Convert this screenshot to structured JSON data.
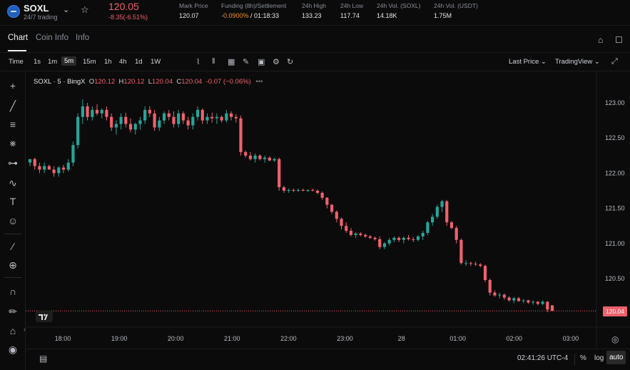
{
  "header": {
    "symbol": "SOXL",
    "subtitle": "24/7 trading",
    "last_price": "120.05",
    "change": "-8.35(-6.51%)",
    "stats": [
      {
        "label": "Mark Price",
        "value": "120.07"
      },
      {
        "label": "Funding (8h)/Settlement",
        "value_neg": "-0.0900%",
        "value_rest": " / 01:18:33"
      },
      {
        "label": "24h High",
        "value": "133.23"
      },
      {
        "label": "24h Low",
        "value": "117.74"
      },
      {
        "label": "24h Vol. (SOXL)",
        "value": "14.18K"
      },
      {
        "label": "24h Vol. (USDT)",
        "value": "1.75M"
      }
    ]
  },
  "tabs": [
    "Chart",
    "Coin Info",
    "Info"
  ],
  "toolbar": {
    "time_label": "Time",
    "intervals": [
      "1s",
      "1m",
      "5m",
      "15m",
      "1h",
      "4h",
      "1d",
      "1W"
    ],
    "selected_interval": "5m",
    "price_type": "Last Price",
    "view_mode": "TradingView"
  },
  "legend": {
    "title": "SOXL · 5 · BingX",
    "o_label": "O",
    "o": "120.12",
    "h_label": "H",
    "h": "120.12",
    "l_label": "L",
    "l": "120.04",
    "c_label": "C",
    "c": "120.04",
    "change": "-0.07 (−0.06%)"
  },
  "current_price_tag": "120.04",
  "bottom": {
    "clock": "02:41:26 UTC-4",
    "percent_label": "%",
    "log_label": "log",
    "auto_label": "auto"
  },
  "colors": {
    "up": "#26a69a",
    "down": "#f0616d",
    "background": "#0b0b0b",
    "accent_funding": "#f7931a"
  },
  "chart_data": {
    "type": "candlestick",
    "interval": "5m",
    "y_ticks": [
      "123.00",
      "122.50",
      "122.00",
      "121.50",
      "121.00",
      "120.50"
    ],
    "ylim": [
      119.85,
      123.2
    ],
    "x_ticks": [
      "18:00",
      "19:00",
      "20:00",
      "21:00",
      "22:00",
      "23:00",
      "28",
      "01:00",
      "02:00",
      "03:00"
    ],
    "candles_ohlc": [
      [
        122.15,
        122.2,
        122.1,
        122.2
      ],
      [
        122.2,
        122.22,
        122.05,
        122.1
      ],
      [
        122.1,
        122.15,
        122.0,
        122.05
      ],
      [
        122.05,
        122.15,
        122.0,
        122.1
      ],
      [
        122.1,
        122.12,
        122.05,
        122.05
      ],
      [
        122.05,
        122.1,
        121.95,
        122.0
      ],
      [
        122.0,
        122.1,
        121.95,
        122.08
      ],
      [
        122.08,
        122.12,
        122.0,
        122.05
      ],
      [
        122.05,
        122.2,
        122.02,
        122.15
      ],
      [
        122.15,
        122.45,
        122.1,
        122.4
      ],
      [
        122.4,
        122.85,
        122.35,
        122.8
      ],
      [
        122.8,
        123.05,
        122.7,
        122.95
      ],
      [
        122.95,
        123.0,
        122.75,
        122.8
      ],
      [
        122.8,
        122.95,
        122.75,
        122.9
      ],
      [
        122.9,
        122.98,
        122.82,
        122.85
      ],
      [
        122.85,
        122.92,
        122.78,
        122.9
      ],
      [
        122.9,
        122.95,
        122.75,
        122.8
      ],
      [
        122.8,
        122.85,
        122.6,
        122.65
      ],
      [
        122.65,
        122.75,
        122.55,
        122.7
      ],
      [
        122.7,
        122.85,
        122.62,
        122.8
      ],
      [
        122.8,
        122.86,
        122.65,
        122.7
      ],
      [
        122.7,
        122.78,
        122.58,
        122.62
      ],
      [
        122.62,
        122.72,
        122.55,
        122.7
      ],
      [
        122.7,
        122.8,
        122.62,
        122.75
      ],
      [
        122.75,
        122.95,
        122.7,
        122.9
      ],
      [
        122.9,
        122.95,
        122.8,
        122.85
      ],
      [
        122.85,
        122.9,
        122.6,
        122.65
      ],
      [
        122.65,
        122.8,
        122.6,
        122.75
      ],
      [
        122.75,
        122.88,
        122.7,
        122.85
      ],
      [
        122.85,
        122.9,
        122.75,
        122.8
      ],
      [
        122.8,
        122.88,
        122.65,
        122.7
      ],
      [
        122.7,
        122.9,
        122.65,
        122.85
      ],
      [
        122.85,
        122.88,
        122.7,
        122.75
      ],
      [
        122.75,
        122.8,
        122.62,
        122.68
      ],
      [
        122.68,
        122.85,
        122.62,
        122.8
      ],
      [
        122.8,
        122.95,
        122.75,
        122.9
      ],
      [
        122.9,
        122.92,
        122.7,
        122.75
      ],
      [
        122.75,
        122.85,
        122.7,
        122.8
      ],
      [
        122.8,
        122.86,
        122.72,
        122.78
      ],
      [
        122.78,
        122.85,
        122.7,
        122.8
      ],
      [
        122.8,
        122.82,
        122.72,
        122.75
      ],
      [
        122.75,
        122.9,
        122.72,
        122.85
      ],
      [
        122.85,
        122.88,
        122.75,
        122.8
      ],
      [
        122.8,
        122.84,
        122.72,
        122.78
      ],
      [
        122.78,
        122.82,
        122.25,
        122.3
      ],
      [
        122.3,
        122.32,
        122.22,
        122.25
      ],
      [
        122.25,
        122.3,
        122.18,
        122.2
      ],
      [
        122.2,
        122.28,
        122.15,
        122.25
      ],
      [
        122.25,
        122.27,
        122.18,
        122.2
      ],
      [
        122.2,
        122.25,
        122.15,
        122.22
      ],
      [
        122.22,
        122.24,
        122.17,
        122.18
      ],
      [
        122.18,
        122.22,
        122.16,
        122.2
      ],
      [
        122.2,
        122.22,
        121.75,
        121.8
      ],
      [
        121.8,
        121.82,
        121.72,
        121.75
      ],
      [
        121.75,
        121.78,
        121.72,
        121.76
      ],
      [
        121.76,
        121.78,
        121.73,
        121.75
      ],
      [
        121.75,
        121.78,
        121.73,
        121.76
      ],
      [
        121.76,
        121.78,
        121.74,
        121.75
      ],
      [
        121.75,
        121.77,
        121.73,
        121.76
      ],
      [
        121.76,
        121.78,
        121.74,
        121.75
      ],
      [
        121.75,
        121.77,
        121.7,
        121.72
      ],
      [
        121.72,
        121.74,
        121.62,
        121.65
      ],
      [
        121.65,
        121.66,
        121.5,
        121.55
      ],
      [
        121.55,
        121.56,
        121.42,
        121.45
      ],
      [
        121.45,
        121.47,
        121.3,
        121.35
      ],
      [
        121.35,
        121.37,
        121.2,
        121.25
      ],
      [
        121.25,
        121.3,
        121.15,
        121.18
      ],
      [
        121.18,
        121.22,
        121.1,
        121.12
      ],
      [
        121.12,
        121.16,
        121.08,
        121.14
      ],
      [
        121.14,
        121.16,
        121.1,
        121.12
      ],
      [
        121.12,
        121.14,
        121.08,
        121.1
      ],
      [
        121.1,
        121.12,
        121.06,
        121.08
      ],
      [
        121.08,
        121.1,
        121.04,
        121.06
      ],
      [
        121.06,
        121.1,
        120.92,
        120.95
      ],
      [
        120.95,
        121.02,
        120.92,
        121.0
      ],
      [
        121.0,
        121.08,
        120.97,
        121.05
      ],
      [
        121.05,
        121.1,
        121.02,
        121.08
      ],
      [
        121.08,
        121.1,
        121.02,
        121.05
      ],
      [
        121.05,
        121.1,
        121.0,
        121.08
      ],
      [
        121.08,
        121.12,
        121.04,
        121.06
      ],
      [
        121.06,
        121.09,
        121.02,
        121.05
      ],
      [
        121.05,
        121.12,
        121.03,
        121.1
      ],
      [
        121.1,
        121.18,
        121.05,
        121.15
      ],
      [
        121.15,
        121.32,
        121.12,
        121.3
      ],
      [
        121.3,
        121.42,
        121.25,
        121.38
      ],
      [
        121.38,
        121.55,
        121.35,
        121.52
      ],
      [
        121.52,
        121.62,
        121.45,
        121.6
      ],
      [
        121.6,
        121.62,
        121.25,
        121.3
      ],
      [
        121.3,
        121.32,
        121.2,
        121.22
      ],
      [
        121.22,
        121.25,
        121.0,
        121.05
      ],
      [
        121.05,
        121.07,
        120.7,
        120.72
      ],
      [
        120.72,
        120.76,
        120.68,
        120.72
      ],
      [
        120.72,
        120.74,
        120.68,
        120.71
      ],
      [
        120.71,
        120.74,
        120.68,
        120.7
      ],
      [
        120.7,
        120.72,
        120.66,
        120.68
      ],
      [
        120.68,
        120.7,
        120.45,
        120.48
      ],
      [
        120.48,
        120.5,
        120.26,
        120.3
      ],
      [
        120.3,
        120.33,
        120.24,
        120.26
      ],
      [
        120.26,
        120.3,
        120.22,
        120.27
      ],
      [
        120.27,
        120.29,
        120.2,
        120.23
      ],
      [
        120.23,
        120.25,
        120.17,
        120.19
      ],
      [
        120.19,
        120.24,
        120.15,
        120.22
      ],
      [
        120.22,
        120.24,
        120.17,
        120.18
      ],
      [
        120.18,
        120.21,
        120.15,
        120.19
      ],
      [
        120.19,
        120.2,
        120.14,
        120.16
      ],
      [
        120.16,
        120.19,
        120.13,
        120.17
      ],
      [
        120.17,
        120.18,
        120.12,
        120.14
      ],
      [
        120.14,
        120.19,
        120.12,
        120.17
      ],
      [
        120.17,
        120.18,
        120.02,
        120.06
      ],
      [
        120.12,
        120.12,
        120.04,
        120.04
      ]
    ]
  }
}
